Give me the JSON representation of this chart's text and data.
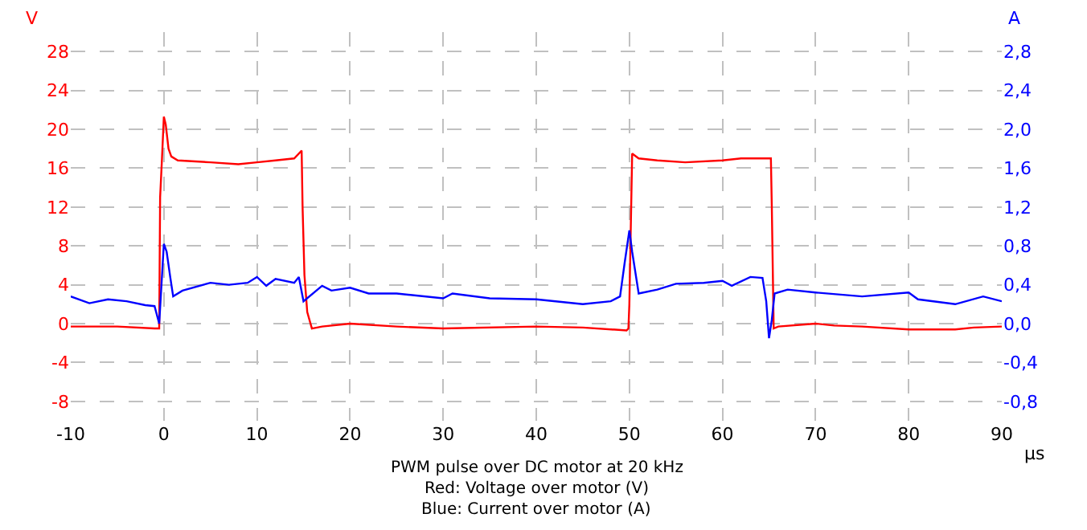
{
  "chart_data": {
    "type": "line",
    "title": "PWM pulse over DC motor at 20 kHz",
    "annotations": [
      "Red: Voltage over motor (V)",
      "Blue: Current over motor (A)"
    ],
    "xlabel": "µs",
    "ylabel": "V",
    "y2label": "A",
    "xlim": [
      -10,
      90
    ],
    "xticks": [
      -10,
      0,
      10,
      20,
      30,
      40,
      50,
      60,
      70,
      80,
      90
    ],
    "ylim": [
      -10,
      30
    ],
    "yticks": [
      -8,
      -4,
      0,
      4,
      8,
      12,
      16,
      20,
      24,
      28
    ],
    "y2lim": [
      -1.0,
      3.0
    ],
    "y2ticks": [
      {
        "value": -0.8,
        "label": "-0,8"
      },
      {
        "value": -0.4,
        "label": "-0,4"
      },
      {
        "value": 0.0,
        "label": "0,0"
      },
      {
        "value": 0.4,
        "label": "0,4"
      },
      {
        "value": 0.8,
        "label": "0,8"
      },
      {
        "value": 1.2,
        "label": "1,2"
      },
      {
        "value": 1.6,
        "label": "1,6"
      },
      {
        "value": 2.0,
        "label": "2,0"
      },
      {
        "value": 2.4,
        "label": "2,4"
      },
      {
        "value": 2.8,
        "label": "2,8"
      }
    ],
    "grid": true,
    "line_style": "solid",
    "marker": "none",
    "series": [
      {
        "color": "#ff0000",
        "x": [
          -10,
          -5,
          -1,
          -0.5,
          -0.4,
          -0.2,
          0.0,
          0.2,
          0.5,
          0.8,
          1.5,
          5,
          8,
          10,
          12,
          14,
          14.8,
          14.9,
          15.1,
          15.4,
          15.9,
          17,
          20,
          25,
          30,
          40,
          45,
          49.7,
          49.9,
          50.0,
          50.3,
          51,
          53,
          56,
          60,
          62,
          64,
          65.2,
          65.3,
          65.5,
          66,
          70,
          72,
          75,
          80,
          85,
          87,
          90
        ],
        "values": [
          -0.3,
          -0.3,
          -0.5,
          -0.5,
          13,
          17,
          21.3,
          20.5,
          18,
          17.2,
          16.8,
          16.6,
          16.4,
          16.6,
          16.8,
          17,
          17.8,
          12,
          5,
          1.2,
          -0.5,
          -0.3,
          0,
          -0.3,
          -0.5,
          -0.3,
          -0.4,
          -0.7,
          -0.5,
          2,
          17.5,
          17,
          16.8,
          16.6,
          16.8,
          17,
          17,
          17,
          12,
          -0.5,
          -0.3,
          0,
          -0.2,
          -0.3,
          -0.6,
          -0.6,
          -0.4,
          -0.3
        ]
      },
      {
        "color": "#0000ff",
        "axis": "y2",
        "x": [
          -10,
          -8,
          -6,
          -4,
          -2,
          -1,
          -0.5,
          0,
          0.3,
          0.7,
          1,
          2,
          5,
          7,
          9,
          10,
          11,
          12,
          14,
          14.5,
          15,
          17,
          18,
          20,
          22,
          25,
          30,
          31,
          35,
          40,
          45,
          48,
          49,
          49.5,
          50,
          50.3,
          51,
          53,
          55,
          58,
          60,
          61,
          63,
          64.3,
          64.7,
          65,
          65.3,
          65.6,
          67,
          70,
          75,
          80,
          81,
          85,
          88,
          90
        ],
        "values": [
          0.28,
          0.21,
          0.25,
          0.23,
          0.19,
          0.18,
          0.0,
          0.82,
          0.74,
          0.47,
          0.28,
          0.34,
          0.42,
          0.4,
          0.42,
          0.48,
          0.39,
          0.46,
          0.42,
          0.48,
          0.23,
          0.39,
          0.34,
          0.37,
          0.31,
          0.31,
          0.26,
          0.31,
          0.26,
          0.25,
          0.2,
          0.23,
          0.28,
          0.63,
          0.96,
          0.74,
          0.31,
          0.35,
          0.41,
          0.42,
          0.44,
          0.39,
          0.48,
          0.47,
          0.23,
          -0.15,
          0.04,
          0.31,
          0.35,
          0.32,
          0.28,
          0.32,
          0.25,
          0.2,
          0.28,
          0.23
        ]
      }
    ]
  }
}
